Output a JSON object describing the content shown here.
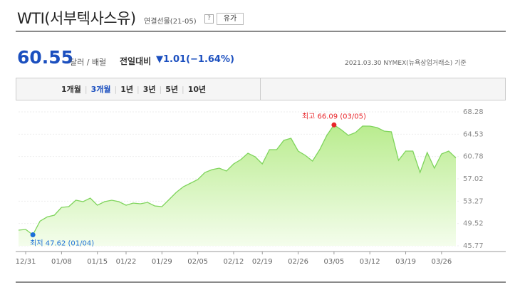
{
  "header": {
    "title": "WTI(서부텍사스유)",
    "contract": "연결선물(21-05)",
    "help": "?",
    "button": "유가"
  },
  "quote": {
    "price": "60.55",
    "unit": "달러 / 배럴",
    "change_label": "전일대비",
    "change": "▼1.01(−1.64%)",
    "as_of": "2021.03.30 NYMEX(뉴욕상업거래소) 기준"
  },
  "tabs": [
    "1개월",
    "3개월",
    "1년",
    "3년",
    "5년",
    "10년"
  ],
  "chart_data": {
    "type": "area",
    "color": "#7fd45c",
    "categories": [
      null,
      "12/31",
      null,
      null,
      null,
      null,
      "01/08",
      null,
      null,
      null,
      null,
      "01/15",
      null,
      null,
      null,
      "01/22",
      null,
      null,
      null,
      null,
      "01/29",
      null,
      null,
      null,
      null,
      "02/05",
      null,
      null,
      null,
      null,
      "02/12",
      null,
      null,
      null,
      "02/19",
      null,
      null,
      null,
      null,
      "02/26",
      null,
      null,
      null,
      null,
      "03/05",
      null,
      null,
      null,
      null,
      "03/12",
      null,
      null,
      null,
      null,
      "03/19",
      null,
      null,
      null,
      null,
      "03/26",
      null,
      null
    ],
    "values": [
      48.4,
      48.52,
      47.62,
      49.93,
      50.63,
      50.92,
      52.24,
      52.36,
      53.43,
      53.19,
      53.79,
      52.59,
      53.19,
      53.43,
      53.19,
      52.59,
      52.95,
      52.83,
      53.07,
      52.47,
      52.36,
      53.55,
      54.75,
      55.71,
      56.31,
      56.9,
      58.1,
      58.58,
      58.82,
      58.34,
      59.54,
      60.26,
      61.33,
      60.74,
      59.54,
      61.93,
      61.93,
      63.49,
      63.85,
      61.69,
      60.98,
      60.02,
      61.93,
      64.33,
      66.09,
      65.29,
      64.33,
      64.81,
      65.9,
      65.88,
      65.65,
      65.05,
      64.93,
      60.14,
      61.69,
      61.69,
      58.1,
      61.45,
      58.82,
      61.21,
      61.69,
      60.55
    ],
    "ylim": [
      45.77,
      68.28
    ],
    "yticks": [
      45.77,
      49.52,
      53.27,
      57.02,
      60.78,
      64.53,
      68.28
    ],
    "high_label": "최고 66.09 (03/05)",
    "low_label": "최저 47.62 (01/04)",
    "grid": true
  }
}
